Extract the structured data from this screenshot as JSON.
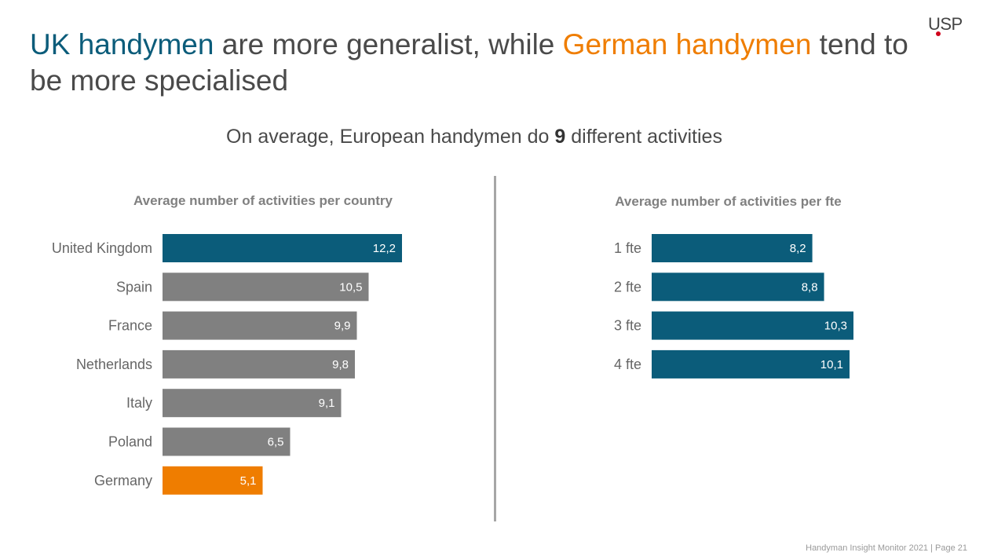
{
  "headline": {
    "part1": "UK handymen",
    "part2": " are more generalist, while ",
    "part3": "German handymen",
    "part4": " tend to be more specialised"
  },
  "logo": "USP",
  "subtitle": {
    "before": "On average, European handymen do ",
    "bold": "9",
    "after": " different activities"
  },
  "footer": "Handyman Insight Monitor 2021 | Page 21",
  "colors": {
    "blue": "#0b5c7a",
    "grey": "#808080",
    "orange": "#ef7d00",
    "label": "#666666"
  },
  "chart_data": [
    {
      "type": "bar",
      "orientation": "horizontal",
      "title": "Average number of activities per country",
      "categories": [
        "United Kingdom",
        "Spain",
        "France",
        "Netherlands",
        "Italy",
        "Poland",
        "Germany"
      ],
      "values": [
        12.2,
        10.5,
        9.9,
        9.8,
        9.1,
        6.5,
        5.1
      ],
      "value_labels": [
        "12,2",
        "10,5",
        "9,9",
        "9,8",
        "9,1",
        "6,5",
        "5,1"
      ],
      "bar_colors": [
        "#0b5c7a",
        "#808080",
        "#808080",
        "#808080",
        "#808080",
        "#808080",
        "#ef7d00"
      ],
      "xlim": [
        0,
        12.2
      ]
    },
    {
      "type": "bar",
      "orientation": "horizontal",
      "title": "Average number of activities per fte",
      "categories": [
        "1 fte",
        "2 fte",
        "3 fte",
        "4 fte"
      ],
      "values": [
        8.2,
        8.8,
        10.3,
        10.1
      ],
      "value_labels": [
        "8,2",
        "8,8",
        "10,3",
        "10,1"
      ],
      "bar_colors": [
        "#0b5c7a",
        "#0b5c7a",
        "#0b5c7a",
        "#0b5c7a"
      ],
      "xlim": [
        0,
        10.3
      ]
    }
  ]
}
